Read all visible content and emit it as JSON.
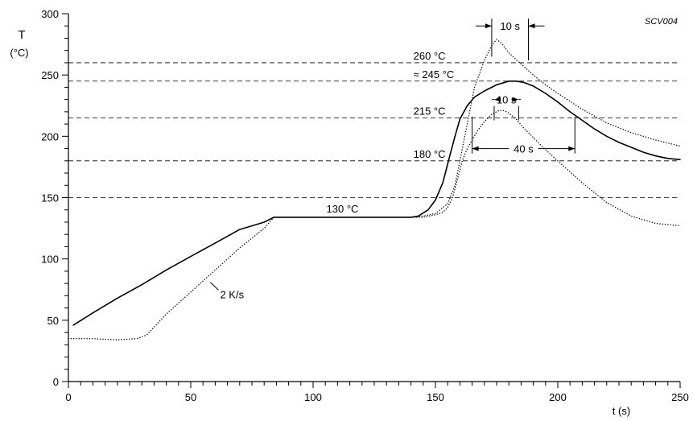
{
  "chart_data": {
    "type": "line",
    "code": "SCV004",
    "xlabel": "t (s)",
    "ylabel_symbol": "T",
    "ylabel_unit": "(°C)",
    "xlim": [
      0,
      250
    ],
    "ylim": [
      0,
      300
    ],
    "xticks": [
      0,
      50,
      100,
      150,
      200,
      250
    ],
    "yticks": [
      0,
      50,
      100,
      150,
      200,
      250,
      300
    ],
    "x_minor_step": 5,
    "y_minor_step": 10,
    "colors": {
      "line": "#000000",
      "background": "#ffffff"
    },
    "reference_lines": [
      {
        "y": 260,
        "label": "260 °C",
        "label_x": 141
      },
      {
        "y": 245,
        "label": "≈ 245 °C",
        "label_x": 141
      },
      {
        "y": 215,
        "label": "215 °C",
        "label_x": 141
      },
      {
        "y": 180,
        "label": "180 °C",
        "label_x": 141
      },
      {
        "y": 150,
        "label": ""
      }
    ],
    "series": [
      {
        "style": "solid",
        "x": [
          2,
          10,
          20,
          30,
          40,
          50,
          60,
          70,
          80,
          84,
          90,
          100,
          110,
          120,
          130,
          140,
          143,
          147,
          150,
          153,
          156,
          158,
          160,
          163,
          166,
          170,
          175,
          180,
          183,
          186,
          190,
          195,
          200,
          205,
          210,
          215,
          220,
          225,
          230,
          235,
          240,
          245,
          250
        ],
        "y": [
          46,
          56,
          68,
          79,
          91,
          102,
          113,
          124,
          130,
          134,
          134,
          134,
          134,
          134,
          134,
          134,
          135,
          140,
          148,
          162,
          185,
          200,
          214,
          225,
          232,
          237,
          242,
          245,
          245,
          244,
          241,
          235,
          228,
          220,
          213,
          206,
          200,
          195,
          191,
          187,
          184,
          182,
          181
        ]
      },
      {
        "style": "dotted",
        "x": [
          0,
          10,
          20,
          28,
          32,
          40,
          50,
          60,
          70,
          80,
          84,
          90,
          100,
          110,
          120,
          130,
          140,
          145,
          150,
          155,
          158,
          160,
          163,
          166,
          170,
          173,
          175,
          177,
          180,
          185,
          190,
          195,
          200,
          210,
          220,
          230,
          240,
          250
        ],
        "y": [
          35,
          35,
          34,
          35,
          38,
          55,
          73,
          91,
          109,
          125,
          134,
          134,
          134,
          134,
          134,
          134,
          134,
          135,
          137,
          145,
          160,
          180,
          210,
          240,
          262,
          274,
          279,
          276,
          268,
          259,
          250,
          242,
          235,
          222,
          211,
          203,
          197,
          192
        ]
      },
      {
        "style": "dotted",
        "x": [
          140,
          145,
          150,
          153,
          155,
          157,
          159,
          161,
          163,
          165,
          167,
          170,
          173,
          176,
          178,
          180,
          183,
          186,
          190,
          195,
          200,
          210,
          220,
          230,
          240,
          250
        ],
        "y": [
          134,
          134,
          136,
          138,
          142,
          150,
          165,
          180,
          190,
          197,
          204,
          212,
          218,
          221,
          221,
          219,
          214,
          207,
          199,
          189,
          180,
          162,
          146,
          135,
          129,
          127
        ]
      }
    ],
    "annotations": [
      {
        "text": "130 °C",
        "x": 112,
        "y": 138
      },
      {
        "text": "2 K/s",
        "x": 62,
        "y": 68,
        "leader_from": [
          58,
          81
        ]
      },
      {
        "text": "10 s",
        "x1": 173,
        "x2": 188,
        "y": 290,
        "kind": "outside",
        "ext_top": 296,
        "ext_bottom1": 265,
        "ext_bottom2": 262
      },
      {
        "text": "10 s",
        "x1": 174,
        "x2": 184,
        "y": 230,
        "kind": "inside",
        "ext_top": 233,
        "ext_bottom1": 213,
        "ext_bottom2": 213
      },
      {
        "text": "40 s",
        "x1": 165,
        "x2": 207,
        "y": 190,
        "kind": "inside",
        "ext_top": 216,
        "ext_bottom1": 186,
        "ext_bottom2": 186
      }
    ]
  }
}
